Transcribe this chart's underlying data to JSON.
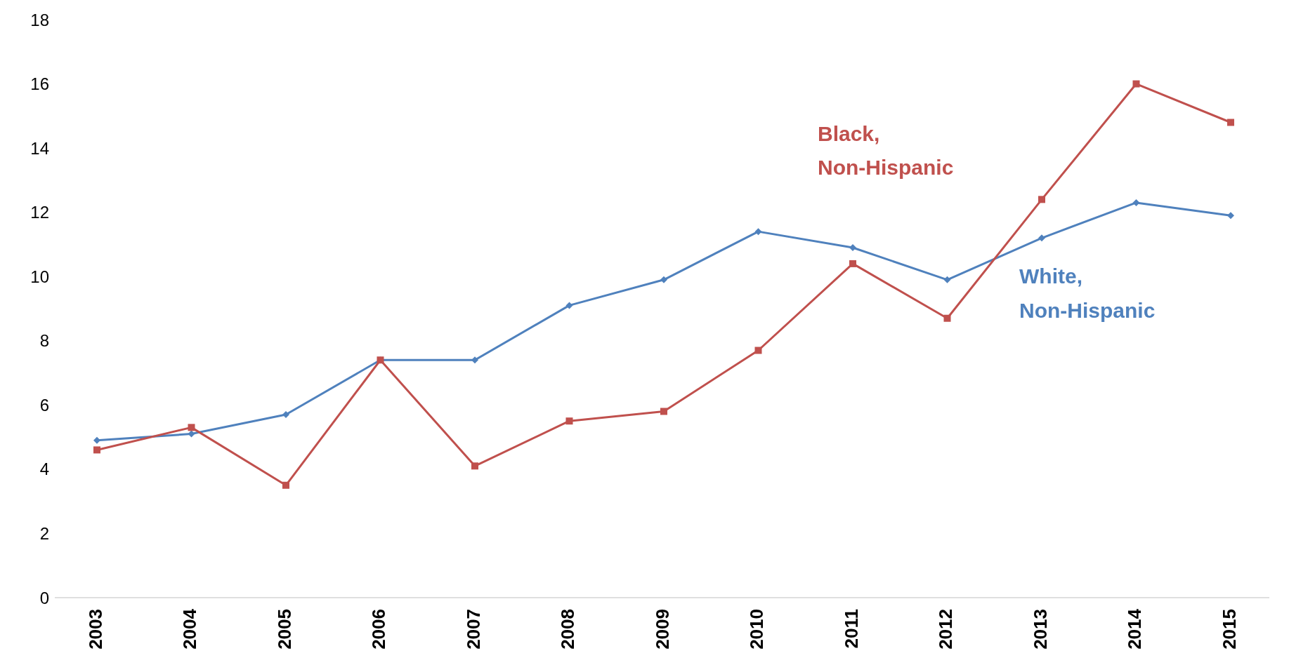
{
  "chart_data": {
    "type": "line",
    "categories": [
      "2003",
      "2004",
      "2005",
      "2006",
      "2007",
      "2008",
      "2009",
      "2010",
      "2011",
      "2012",
      "2013",
      "2014",
      "2015"
    ],
    "series": [
      {
        "name": "White, Non-Hispanic",
        "color": "#4f81bd",
        "marker": "diamond",
        "values": [
          4.9,
          5.1,
          5.7,
          7.4,
          7.4,
          9.1,
          9.9,
          11.4,
          10.9,
          9.9,
          11.2,
          12.3,
          11.9
        ]
      },
      {
        "name": "Black, Non-Hispanic",
        "color": "#c0504d",
        "marker": "square",
        "values": [
          4.6,
          5.3,
          3.5,
          7.4,
          4.1,
          5.5,
          5.8,
          7.7,
          10.4,
          8.7,
          12.4,
          16.0,
          14.8
        ]
      }
    ],
    "ylim": [
      0,
      18
    ],
    "yticks": [
      0,
      2,
      4,
      6,
      8,
      10,
      12,
      14,
      16,
      18
    ],
    "line_style": "solid"
  }
}
